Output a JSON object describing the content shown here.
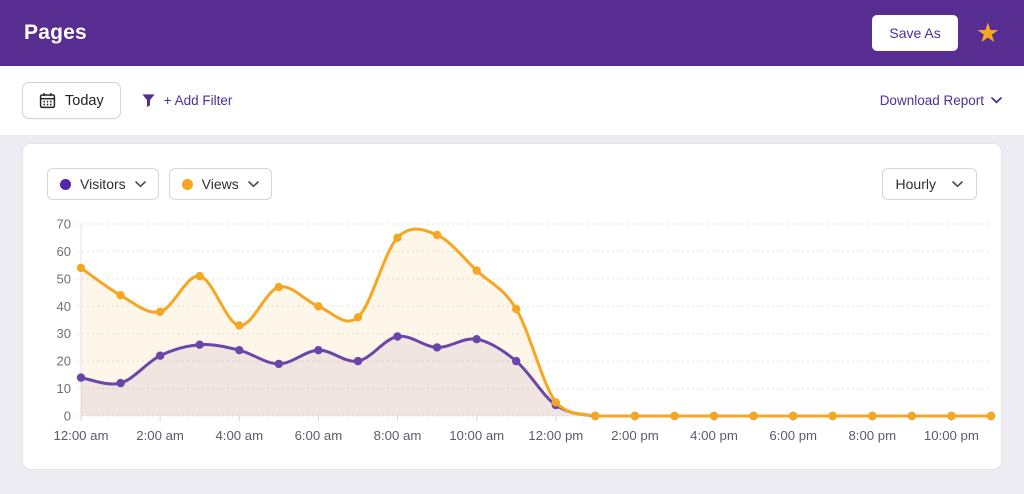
{
  "header": {
    "title": "Pages",
    "save_as_label": "Save As",
    "colors": {
      "bar": "#572d91",
      "star": "#f5a623"
    }
  },
  "toolbar": {
    "date_range_label": "Today",
    "add_filter_label": "+ Add Filter",
    "download_report_label": "Download Report"
  },
  "panel": {
    "metric_selectors": [
      {
        "label": "Visitors",
        "color": "#5226a8"
      },
      {
        "label": "Views",
        "color": "#f5a623"
      }
    ],
    "interval_label": "Hourly"
  },
  "chart_data": {
    "type": "line",
    "title": "",
    "xlabel": "",
    "ylabel": "",
    "x": [
      "12:00 am",
      "1:00 am",
      "2:00 am",
      "3:00 am",
      "4:00 am",
      "5:00 am",
      "6:00 am",
      "7:00 am",
      "8:00 am",
      "9:00 am",
      "10:00 am",
      "11:00 am",
      "12:00 pm",
      "1:00 pm",
      "2:00 pm",
      "3:00 pm",
      "4:00 pm",
      "5:00 pm",
      "6:00 pm",
      "7:00 pm",
      "8:00 pm",
      "9:00 pm",
      "10:00 pm",
      "11:00 pm"
    ],
    "xtick_labels": [
      "12:00 am",
      "2:00 am",
      "4:00 am",
      "6:00 am",
      "8:00 am",
      "10:00 am",
      "12:00 pm",
      "2:00 pm",
      "4:00 pm",
      "6:00 pm",
      "8:00 pm",
      "10:00 pm"
    ],
    "label_every": 2,
    "series": [
      {
        "name": "Visitors",
        "color": "#6a46a8",
        "fill": "rgba(106,70,168,0.10)",
        "values": [
          14,
          12,
          22,
          26,
          24,
          19,
          24,
          20,
          29,
          25,
          28,
          20,
          4,
          0,
          0,
          0,
          0,
          0,
          0,
          0,
          0,
          0,
          0,
          0
        ]
      },
      {
        "name": "Views",
        "color": "#f5a623",
        "fill": "rgba(245,166,35,0.10)",
        "values": [
          54,
          44,
          38,
          51,
          33,
          47,
          40,
          36,
          65,
          66,
          53,
          39,
          5,
          0,
          0,
          0,
          0,
          0,
          0,
          0,
          0,
          0,
          0,
          0
        ]
      }
    ],
    "ylim": [
      0,
      70
    ],
    "yticks": [
      0,
      10,
      20,
      30,
      40,
      50,
      60,
      70
    ],
    "grid": "horizontal-dotted",
    "legend_position": "top-left-dropdown-buttons",
    "interval": "Hourly",
    "line_style": "smooth-spline-with-point-markers"
  }
}
